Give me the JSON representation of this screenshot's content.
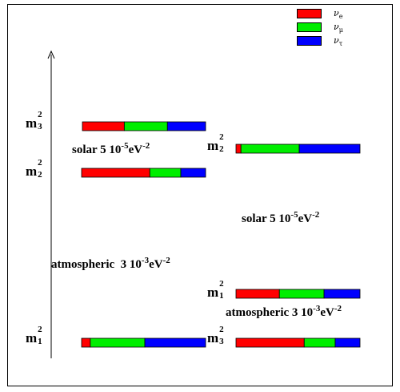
{
  "legend": [
    {
      "name": "νe",
      "symbol": "ν",
      "sub": "e",
      "color": "#ff0000"
    },
    {
      "name": "νμ",
      "symbol": "ν",
      "sub": "μ",
      "color": "#00ee00"
    },
    {
      "name": "ντ",
      "symbol": "ν",
      "sub": "τ",
      "color": "#0000ff"
    }
  ],
  "left_scheme": {
    "levels": {
      "m3": {
        "label_base": "m",
        "label_sup": "2",
        "label_sub": "3",
        "fractions": {
          "nu_e": 0.34,
          "nu_mu": 0.35,
          "nu_tau": 0.31
        }
      },
      "m2": {
        "label_base": "m",
        "label_sup": "2",
        "label_sub": "2",
        "fractions": {
          "nu_e": 0.55,
          "nu_mu": 0.25,
          "nu_tau": 0.2
        }
      },
      "m1": {
        "label_base": "m",
        "label_sup": "2",
        "label_sub": "1",
        "fractions": {
          "nu_e": 0.07,
          "nu_mu": 0.44,
          "nu_tau": 0.49
        }
      }
    },
    "solar": {
      "name": "solar",
      "value": "5 10",
      "exp": "-5",
      "unit": "eV",
      "unit_exp": "-2"
    },
    "atmospheric": {
      "name": "atmospheric",
      "value": "3 10",
      "exp": "-3",
      "unit": "eV",
      "unit_exp": "-2"
    }
  },
  "right_scheme": {
    "levels": {
      "m2": {
        "label_base": "m",
        "label_sup": "2",
        "label_sub": "2",
        "fractions": {
          "nu_e": 0.04,
          "nu_mu": 0.47,
          "nu_tau": 0.49
        }
      },
      "m1": {
        "label_base": "m",
        "label_sup": "2",
        "label_sub": "1",
        "fractions": {
          "nu_e": 0.35,
          "nu_mu": 0.36,
          "nu_tau": 0.29
        }
      },
      "m3": {
        "label_base": "m",
        "label_sup": "2",
        "label_sub": "3",
        "fractions": {
          "nu_e": 0.55,
          "nu_mu": 0.25,
          "nu_tau": 0.2
        }
      }
    },
    "solar": {
      "name": "solar",
      "value": "5 10",
      "exp": "-5",
      "unit": "eV",
      "unit_exp": "-2"
    },
    "atmospheric": {
      "name": "atmospheric",
      "value": "3 10",
      "exp": "-3",
      "unit": "eV",
      "unit_exp": "-2"
    }
  },
  "colors": {
    "nu_e": "#ff0000",
    "nu_mu": "#00ee00",
    "nu_tau": "#0000ff",
    "border": "#000000"
  }
}
